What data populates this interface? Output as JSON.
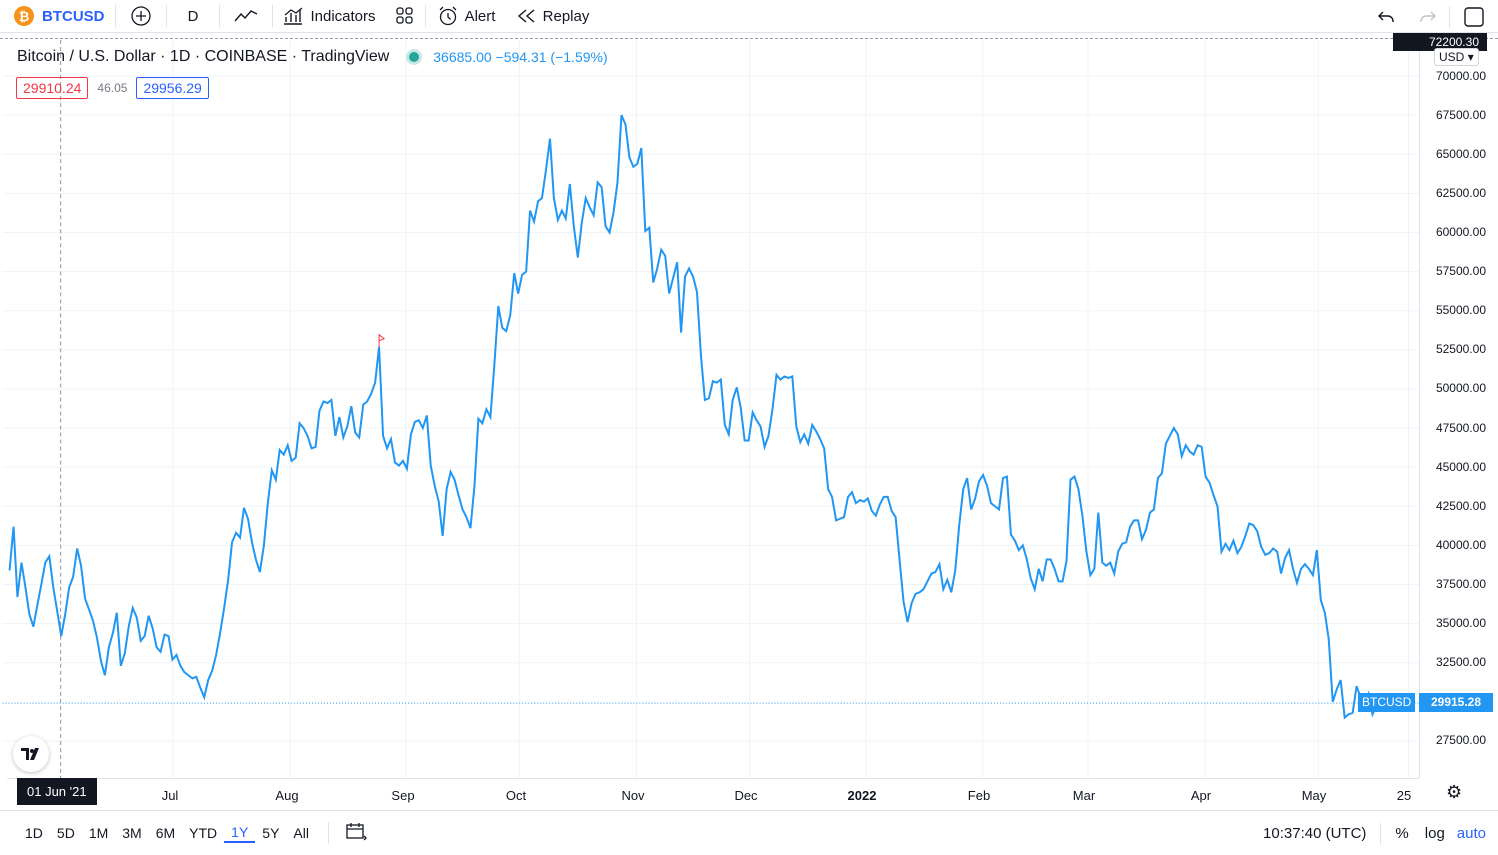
{
  "toolbar": {
    "symbol_glyph": "₿",
    "symbol": "BTCUSD",
    "interval": "D",
    "indicators_label": "Indicators",
    "alert_label": "Alert",
    "replay_label": "Replay",
    "add_icon": "plus-circle-icon",
    "undo_icon": "undo-icon",
    "redo_icon": "redo-icon"
  },
  "legend": {
    "title": "Bitcoin / U.S. Dollar · 1D · COINBASE · TradingView",
    "price_change": "36685.00  −594.31 (−1.59%)",
    "bid": "29910.24",
    "spread": "46.05",
    "ask": "29956.29"
  },
  "price_axis": {
    "currency": "USD",
    "top_value": "72200.30",
    "labels": [
      "70000.00",
      "67500.00",
      "65000.00",
      "62500.00",
      "60000.00",
      "57500.00",
      "55000.00",
      "52500.00",
      "50000.00",
      "47500.00",
      "45000.00",
      "42500.00",
      "40000.00",
      "37500.00",
      "35000.00",
      "32500.00",
      "27500.00"
    ],
    "current_symbol": "BTCUSD",
    "current_price": "29915.28"
  },
  "time_axis": {
    "cursor_label": "01 Jun '21",
    "labels": [
      "Jul",
      "Aug",
      "Sep",
      "Oct",
      "Nov",
      "Dec",
      "2022",
      "Feb",
      "Mar",
      "Apr",
      "May",
      "25"
    ]
  },
  "bottom_bar": {
    "ranges": [
      "1D",
      "5D",
      "1M",
      "3M",
      "6M",
      "YTD",
      "1Y",
      "5Y",
      "All"
    ],
    "active_range": "1Y",
    "clock": "10:37:40 (UTC)",
    "percent_label": "%",
    "log_label": "log",
    "auto_label": "auto"
  },
  "colors": {
    "line": "#2196f3",
    "accent": "#2962ff",
    "down": "#f23645",
    "bitcoin": "#f7931a"
  },
  "chart_data": {
    "type": "line",
    "x_start": "2021-05-25",
    "x_end": "2022-05-20",
    "y_range": [
      25000,
      72500
    ],
    "series": [
      {
        "values": [
          38400,
          41200,
          36700,
          38900,
          37300,
          35600,
          34800,
          36200,
          37500,
          38900,
          39300,
          37300,
          35800,
          34200,
          35600,
          37300,
          38000,
          39800,
          38700,
          36600,
          35900,
          35200,
          34100,
          32600,
          31700,
          33500,
          34400,
          35700,
          32300,
          33100,
          34800,
          36000,
          35400,
          33900,
          34200,
          35500,
          34700,
          33500,
          33200,
          34300,
          34200,
          32700,
          33000,
          32300,
          31900,
          31700,
          31500,
          31600,
          30900,
          30300,
          31400,
          32000,
          33000,
          34400,
          36000,
          37800,
          40200,
          40800,
          40500,
          42400,
          41700,
          40200,
          39100,
          38300,
          40000,
          42700,
          44800,
          44200,
          46100,
          45800,
          46400,
          45400,
          45600,
          47800,
          47500,
          47000,
          46200,
          46300,
          48600,
          49200,
          49100,
          49300,
          47000,
          48200,
          46900,
          47600,
          48900,
          47200,
          46900,
          49000,
          49200,
          49700,
          50400,
          52700,
          47000,
          46200,
          46800,
          45300,
          45100,
          45400,
          44900,
          47100,
          47900,
          48000,
          47500,
          48300,
          45100,
          43800,
          42800,
          40600,
          43600,
          44700,
          44200,
          43200,
          42300,
          41800,
          41100,
          43800,
          48100,
          47800,
          48700,
          48200,
          51500,
          55300,
          53900,
          53700,
          54700,
          57400,
          56100,
          57300,
          57500,
          61400,
          60700,
          62000,
          62200,
          64000,
          66000,
          62200,
          60800,
          61400,
          60900,
          63100,
          60400,
          58400,
          60600,
          62200,
          61600,
          61100,
          63200,
          62900,
          60400,
          60000,
          61300,
          63200,
          67500,
          66900,
          64800,
          64200,
          64400,
          65400,
          60100,
          60300,
          56800,
          57700,
          58900,
          58500,
          56100,
          57100,
          58100,
          53600,
          57200,
          57700,
          57200,
          56200,
          52100,
          49300,
          49400,
          50500,
          50400,
          50600,
          47700,
          47100,
          49300,
          50100,
          48800,
          46700,
          46700,
          48500,
          48000,
          47600,
          46300,
          47000,
          48700,
          50900,
          50600,
          50800,
          50700,
          50800,
          47600,
          46600,
          47100,
          46500,
          47700,
          47300,
          46800,
          46200,
          43600,
          43100,
          41600,
          41700,
          41800,
          43100,
          43400,
          42700,
          42900,
          42800,
          43000,
          42200,
          41900,
          42600,
          43100,
          43100,
          42200,
          41800,
          39000,
          36400,
          35100,
          36300,
          36900,
          37000,
          37200,
          37700,
          38200,
          38300,
          38800,
          37200,
          37800,
          37000,
          38400,
          41300,
          43600,
          44300,
          42300,
          43000,
          44100,
          44500,
          43800,
          42700,
          42500,
          42300,
          44300,
          44400,
          40700,
          40300,
          39700,
          40000,
          39100,
          37900,
          37200,
          38500,
          37700,
          39100,
          39100,
          38500,
          37700,
          37700,
          39000,
          44200,
          44400,
          43600,
          41900,
          39600,
          38100,
          38500,
          42100,
          38900,
          38700,
          38900,
          38200,
          39600,
          40100,
          40200,
          41200,
          41600,
          41600,
          40400,
          41000,
          42100,
          42300,
          44300,
          44600,
          46500,
          47000,
          47500,
          47100,
          45700,
          46400,
          46000,
          45800,
          46400,
          46300,
          44400,
          44000,
          43200,
          42500,
          39600,
          40100,
          39700,
          40300,
          39500,
          39900,
          40600,
          41400,
          41300,
          40900,
          39900,
          39400,
          39500,
          39800,
          39600,
          38200,
          39200,
          39700,
          38500,
          37600,
          38500,
          38800,
          38500,
          38100,
          39700,
          36500,
          35700,
          34000,
          30000,
          30800,
          31400,
          29000,
          29200,
          29300,
          31000,
          30300,
          29900,
          30500,
          29200,
          29800,
          29900,
          29915
        ]
      }
    ]
  }
}
